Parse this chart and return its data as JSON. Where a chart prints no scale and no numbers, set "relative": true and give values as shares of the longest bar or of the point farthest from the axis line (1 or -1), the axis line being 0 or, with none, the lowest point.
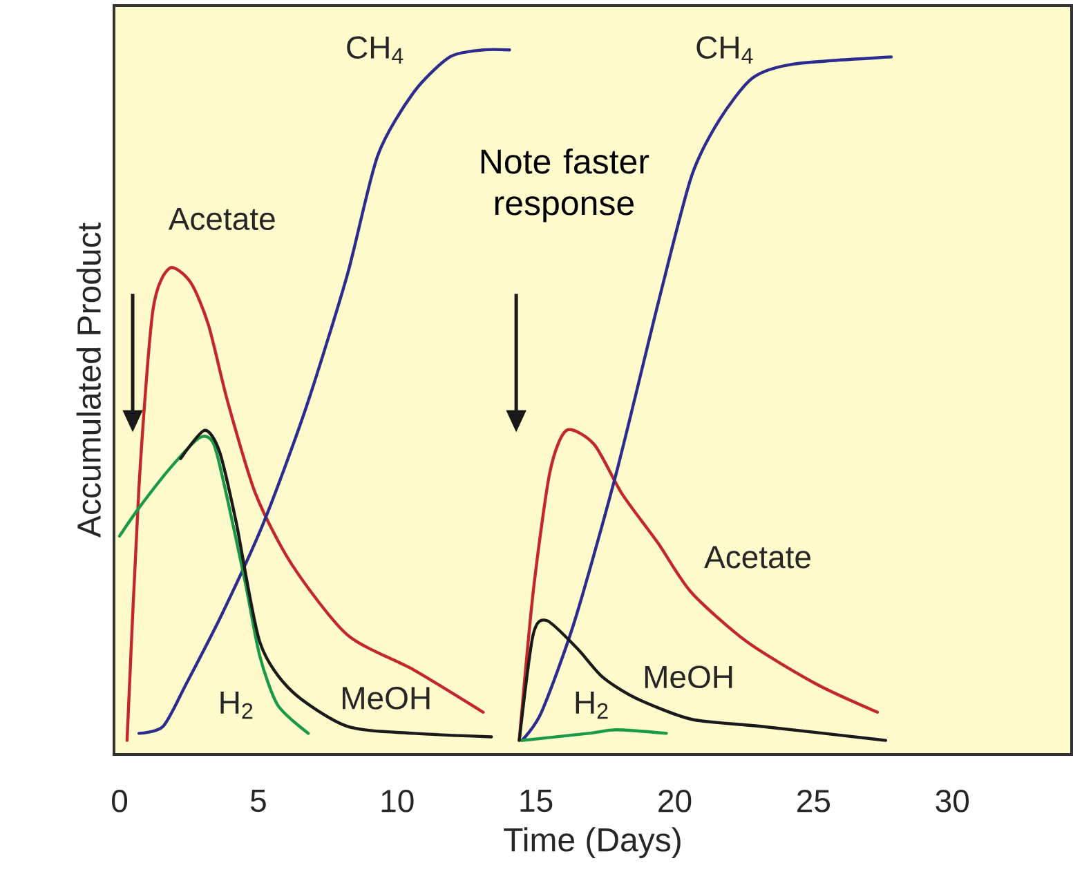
{
  "chart_data": {
    "type": "line",
    "xlabel": "Time (Days)",
    "ylabel": "Accumulated Product",
    "annotations": [
      "Note faster response"
    ],
    "relative": true,
    "tick_labels": "x",
    "xlim": [
      -0.2,
      34.3
    ],
    "xticks": [
      0,
      5,
      10,
      15,
      20,
      25,
      30
    ],
    "series": [
      {
        "name": "Acetate",
        "color": "#c3272b",
        "x": [
          0.27,
          0.7,
          1.2,
          1.8,
          2.56,
          3.2,
          3.9,
          4.9,
          6.2,
          8.2,
          10.6,
          13.1
        ],
        "values": [
          0.02,
          0.38,
          0.63,
          0.69,
          0.67,
          0.61,
          0.5,
          0.37,
          0.27,
          0.17,
          0.12,
          0.06
        ]
      },
      {
        "name": "CH$_{4}$",
        "color": "#2c2c8e",
        "x": [
          0.7,
          1.57,
          2.4,
          3.7,
          5.2,
          6.7,
          8.2,
          9.3,
          10.6,
          11.9,
          13.1,
          14.05
        ],
        "values": [
          0.03,
          0.04,
          0.1,
          0.2,
          0.33,
          0.49,
          0.68,
          0.85,
          0.94,
          0.99,
          1.0,
          1.0
        ]
      },
      {
        "name": "H$_{2}$",
        "color": "#1a9a46",
        "x": [
          0,
          0.7,
          1.9,
          2.9,
          3.4,
          3.9,
          4.55,
          5.05,
          5.7,
          6.8
        ],
        "values": [
          0.31,
          0.35,
          0.41,
          0.45,
          0.44,
          0.36,
          0.24,
          0.14,
          0.07,
          0.03
        ]
      },
      {
        "name": "MeOH",
        "color": "#1a1a1a",
        "x": [
          2.2,
          3.06,
          3.6,
          4.2,
          5.05,
          6.2,
          8.2,
          10.6,
          13.4
        ],
        "values": [
          0.42,
          0.46,
          0.43,
          0.33,
          0.16,
          0.09,
          0.04,
          0.03,
          0.025
        ]
      },
      {
        "name": "Acetate",
        "color": "#c3272b",
        "x": [
          14.4,
          14.9,
          15.5,
          16.1,
          17.1,
          18.1,
          19.4,
          20.6,
          22.6,
          25.1,
          27.3
        ],
        "values": [
          0.02,
          0.23,
          0.4,
          0.46,
          0.44,
          0.37,
          0.3,
          0.23,
          0.16,
          0.1,
          0.06
        ]
      },
      {
        "name": "CH$_{4}$",
        "color": "#2c2c8e",
        "x": [
          14.5,
          15.2,
          16.4,
          17.9,
          19.4,
          20.6,
          21.6,
          22.8,
          24.3,
          27.8
        ],
        "values": [
          0.02,
          0.06,
          0.19,
          0.4,
          0.64,
          0.82,
          0.9,
          0.96,
          0.98,
          0.99
        ]
      },
      {
        "name": "H$_{2}$",
        "color": "#1a9a46",
        "x": [
          14.5,
          16.9,
          17.9,
          19.7
        ],
        "values": [
          0.02,
          0.03,
          0.035,
          0.03
        ]
      },
      {
        "name": "MeOH",
        "color": "#1a1a1a",
        "x": [
          14.4,
          14.9,
          15.4,
          16.5,
          17.4,
          18.6,
          20.6,
          23.1,
          27.6
        ],
        "values": [
          0.02,
          0.17,
          0.19,
          0.15,
          0.11,
          0.08,
          0.05,
          0.04,
          0.02
        ]
      }
    ]
  }
}
